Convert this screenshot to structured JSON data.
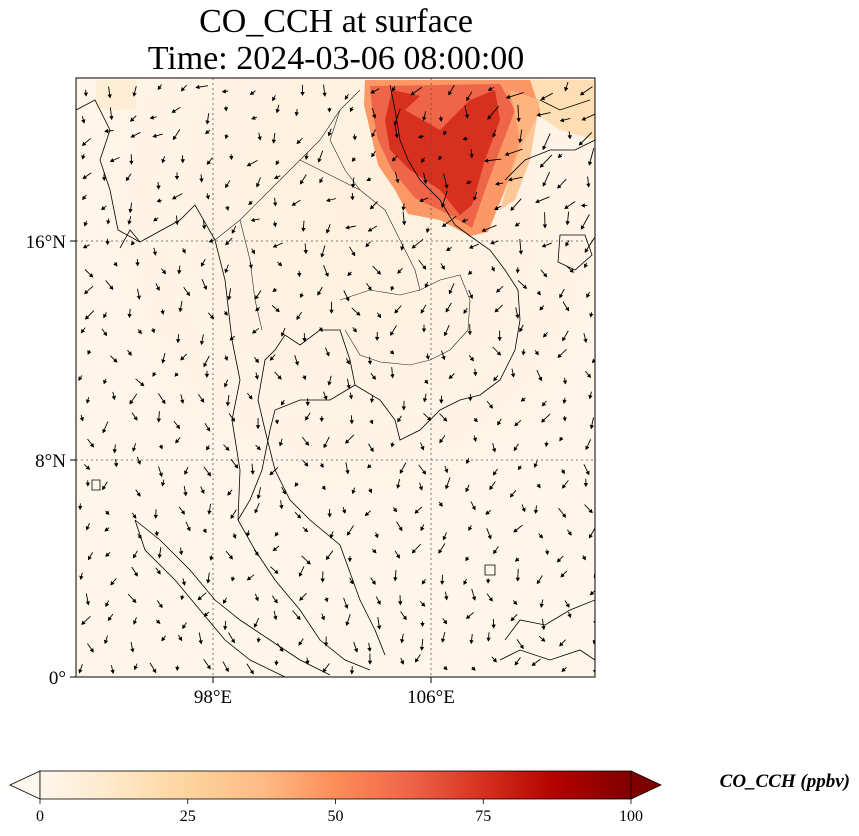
{
  "title": {
    "line1": "CO_CCH at surface",
    "line2": "Time: 2024-03-06 08:00:00"
  },
  "axes": {
    "lat_ticks": [
      {
        "label": "16°N",
        "value": 16
      },
      {
        "label": "8°N",
        "value": 8
      },
      {
        "label": "0°",
        "value": 0
      }
    ],
    "lon_ticks": [
      {
        "label": "98°E",
        "value": 98
      },
      {
        "label": "106°E",
        "value": 106
      }
    ],
    "lat_range": [
      0,
      22
    ],
    "lon_range": [
      93,
      112
    ],
    "grid": true
  },
  "colorbar": {
    "title": "CO_CCH (ppbv)",
    "ticks": [
      "0",
      "25",
      "50",
      "75",
      "100"
    ],
    "range": [
      0,
      100
    ],
    "colormap": "OrRd",
    "extend": "both",
    "colors": [
      "#fff7ec",
      "#fee8c8",
      "#fdd49e",
      "#fdbb84",
      "#fc8d59",
      "#ef6548",
      "#d7301f",
      "#b30000",
      "#7f0000"
    ]
  },
  "plume": {
    "description_color": "#d7301f",
    "background_color": "#fff5e8"
  }
}
